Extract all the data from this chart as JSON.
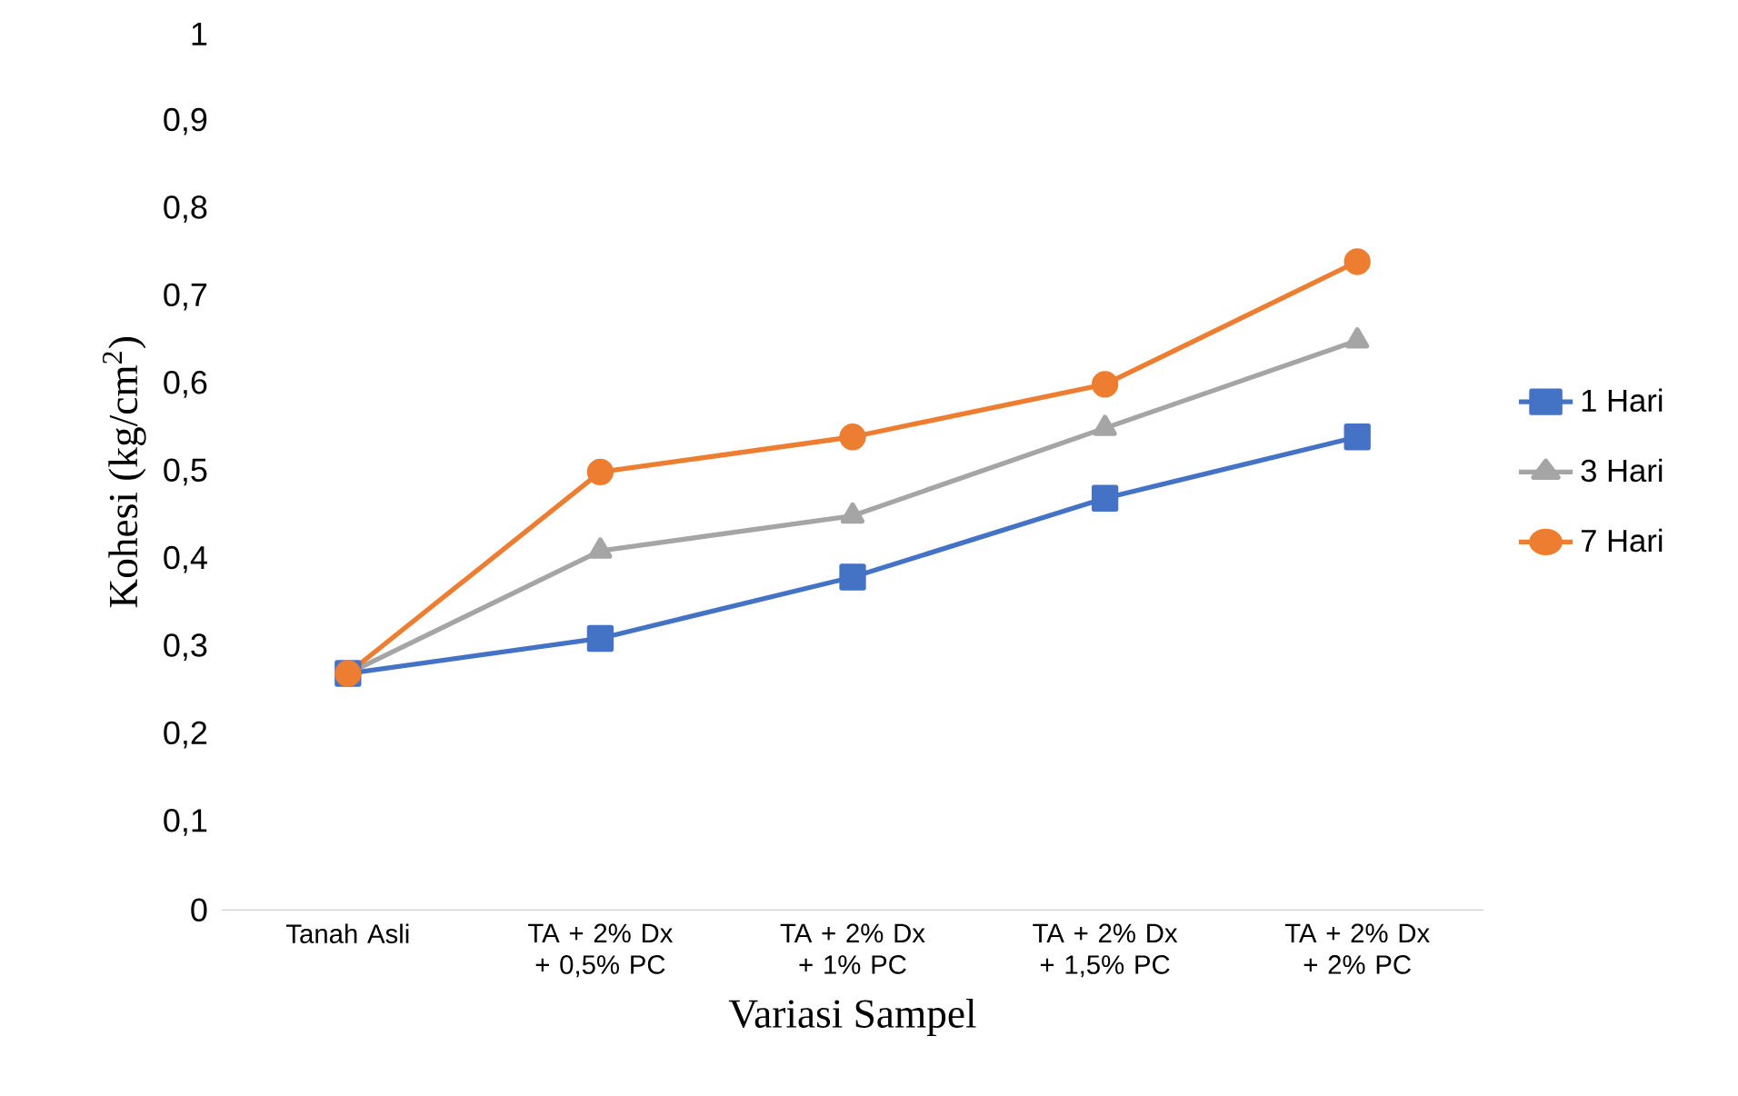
{
  "chart_data": {
    "type": "line",
    "xlabel": "Variasi Sampel",
    "ylabel": "Kohesi (kg/cm$^{2}$)",
    "categories": [
      "Tanah Asli",
      "TA + 2% Dx + 0,5% PC",
      "TA + 2% Dx + 1% PC",
      "TA + 2% Dx + 1,5% PC",
      "TA + 2% Dx + 2% PC"
    ],
    "series": [
      {
        "name": "1 Hari",
        "color": "#4472c4",
        "marker": "square",
        "values": [
          0.27,
          0.31,
          0.38,
          0.47,
          0.54
        ]
      },
      {
        "name": "3 Hari",
        "color": "#a5a5a5",
        "marker": "triangle",
        "values": [
          0.27,
          0.41,
          0.45,
          0.55,
          0.65
        ]
      },
      {
        "name": "7 Hari",
        "color": "#ed7d31",
        "marker": "circle",
        "values": [
          0.27,
          0.5,
          0.54,
          0.6,
          0.74
        ]
      }
    ],
    "ylim": [
      0,
      1
    ],
    "yticks": [
      0,
      {
        "value": 0.1,
        "label": "0,1"
      },
      {
        "value": 0.2,
        "label": "0,2"
      },
      {
        "value": 0.3,
        "label": "0,3"
      },
      {
        "value": 0.4,
        "label": "0,4"
      },
      {
        "value": 0.5,
        "label": "0,5"
      },
      {
        "value": 0.6,
        "label": "0,6"
      },
      {
        "value": 0.7,
        "label": "0,7"
      },
      {
        "value": 0.8,
        "label": "0,8"
      },
      {
        "value": 0.9,
        "label": "0,9"
      },
      1
    ],
    "legend": "right",
    "line_style": "solid",
    "grid": false
  }
}
